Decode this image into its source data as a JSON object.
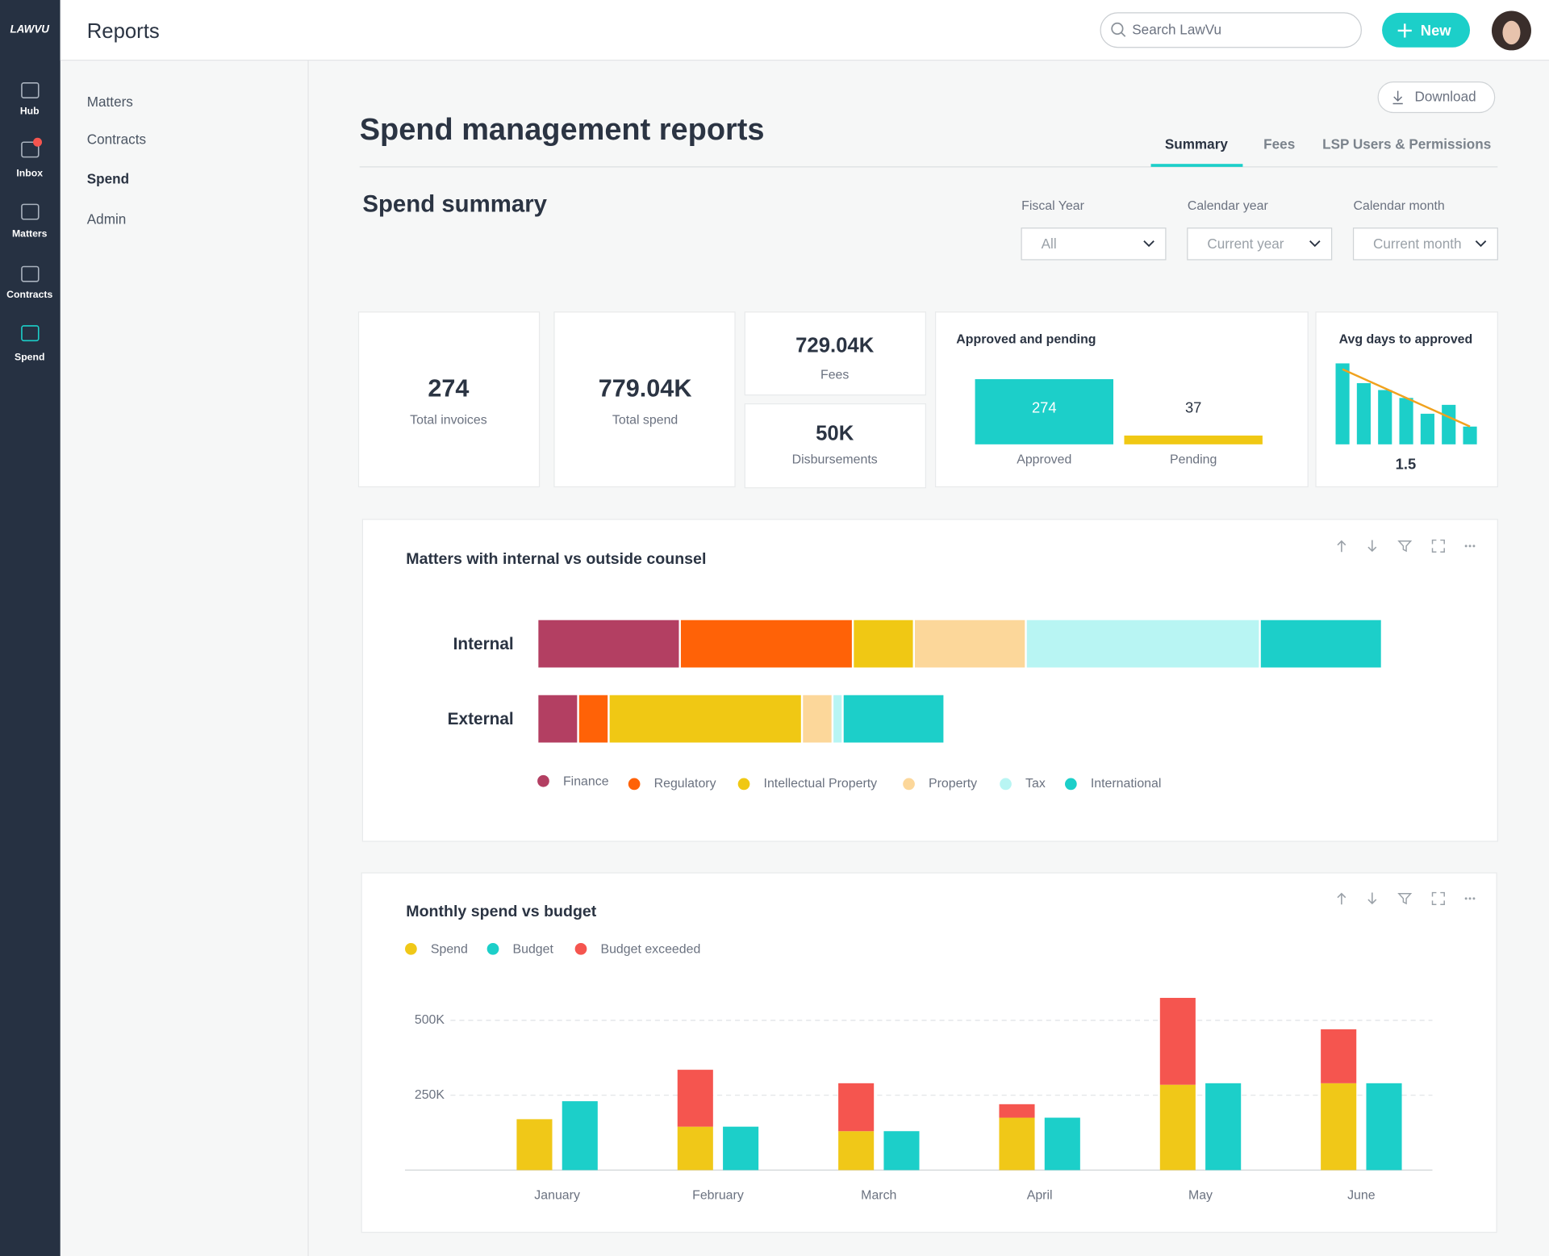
{
  "header": {
    "logo": "LAWVU",
    "title": "Reports",
    "search_placeholder": "Search LawVu",
    "new_button": "New"
  },
  "sidebar": [
    "Hub",
    "Inbox",
    "Matters",
    "Contracts",
    "Spend"
  ],
  "subnav": [
    "Matters",
    "Contracts",
    "Spend",
    "Admin"
  ],
  "page": {
    "title": "Spend management reports",
    "download": "Download",
    "tabs": [
      "Summary",
      "Fees",
      "LSP Users & Permissions"
    ],
    "section": "Spend summary",
    "filters": [
      {
        "label": "Fiscal Year",
        "value": "All"
      },
      {
        "label": "Calendar year",
        "value": "Current year"
      },
      {
        "label": "Calendar month",
        "value": "Current month"
      }
    ]
  },
  "kpis": [
    {
      "value": "274",
      "label": "Total invoices"
    },
    {
      "value": "779.04K",
      "label": "Total spend"
    },
    {
      "value": "729.04K",
      "label": "Fees"
    },
    {
      "value": "50K",
      "label": "Disbursements"
    }
  ],
  "chart_data": [
    {
      "type": "bar",
      "title": "Approved and pending",
      "categories": [
        "Approved",
        "Pending"
      ],
      "values": [
        274,
        37
      ],
      "colors": [
        "#1ccfc9",
        "#f0c814"
      ]
    },
    {
      "type": "bar",
      "title": "Avg days to approved",
      "categories": [
        null,
        null,
        null,
        null,
        null,
        null,
        null
      ],
      "values": [
        4.1,
        3.1,
        2.75,
        2.35,
        1.55,
        2.0,
        0.9
      ],
      "color": "#1ccfc9",
      "trend_color": "#f0a21e",
      "average": 1.5
    },
    {
      "type": "hbar",
      "title": "Matters with internal vs outside counsel",
      "categories": [
        "Internal",
        "External"
      ],
      "series": [
        {
          "name": "Finance",
          "color": "#b33f62",
          "values": [
            14,
            4
          ]
        },
        {
          "name": "Regulatory",
          "color": "#ff6207",
          "values": [
            17,
            3
          ]
        },
        {
          "name": "Intellectual Property",
          "color": "#f0c814",
          "values": [
            6,
            19
          ]
        },
        {
          "name": "Property",
          "color": "#fcd79a",
          "values": [
            11,
            3
          ]
        },
        {
          "name": "Tax",
          "color": "#b8f5f3",
          "values": [
            23,
            1
          ]
        },
        {
          "name": "International",
          "color": "#1ccfc9",
          "values": [
            12,
            10
          ]
        }
      ]
    },
    {
      "type": "column",
      "title": "Monthly spend vs budget",
      "categories": [
        "January",
        "February",
        "March",
        "April",
        "May",
        "June"
      ],
      "series": [
        {
          "name": "Spend",
          "color": "#f0c818",
          "values": [
            170000,
            145000,
            130000,
            175000,
            285000,
            290000
          ]
        },
        {
          "name": "Budget",
          "color": "#1ccfc9",
          "values": [
            230000,
            145000,
            130000,
            175000,
            290000,
            290000
          ]
        },
        {
          "name": "Budget exceeded",
          "color": "#f5554f",
          "values": [
            0,
            190000,
            160000,
            45000,
            290000,
            180000
          ],
          "stacked_on": "Spend"
        }
      ],
      "ylim": [
        0,
        600000
      ],
      "yticks": [
        {
          "value": 250000,
          "label": "250K"
        },
        {
          "value": 500000,
          "label": "500K"
        }
      ],
      "grid": true
    }
  ]
}
